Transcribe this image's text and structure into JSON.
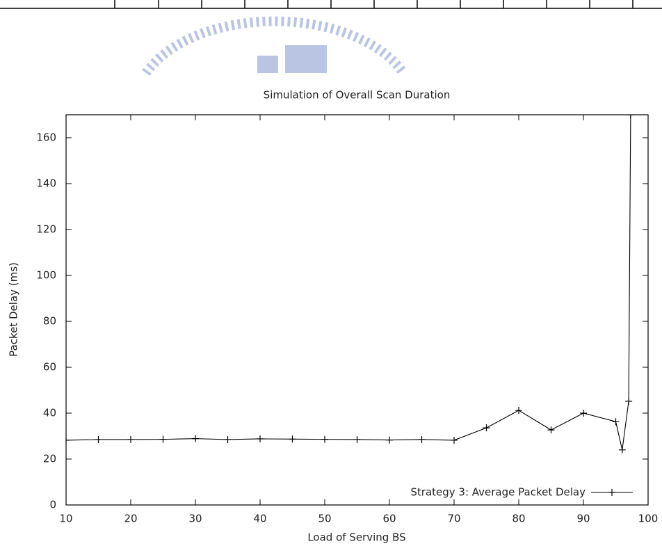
{
  "chart_data": {
    "type": "line",
    "title": "Simulation of Overall Scan Duration",
    "x_label": "Load of Serving BS",
    "y_label": "Packet Delay (ms)",
    "x": [
      10,
      15,
      20,
      25,
      30,
      35,
      40,
      45,
      50,
      55,
      60,
      65,
      70,
      75,
      80,
      85,
      90,
      95,
      96,
      97,
      97.3
    ],
    "series": [
      {
        "name": "Strategy 3: Average Packet Delay",
        "color": "#000000",
        "values": [
          28.2,
          28.5,
          28.5,
          28.6,
          28.9,
          28.5,
          28.8,
          28.7,
          28.6,
          28.5,
          28.3,
          28.5,
          28.2,
          33.6,
          41.2,
          32.7,
          40,
          36.3,
          24,
          45.2,
          170
        ]
      }
    ],
    "xlim": [
      10,
      100
    ],
    "xticks": [
      10,
      20,
      30,
      40,
      50,
      60,
      70,
      80,
      90,
      100
    ],
    "ylim": [
      0,
      170
    ],
    "yticks": [
      0,
      20,
      40,
      60,
      80,
      100,
      120,
      140,
      160
    ],
    "grid": false,
    "legend": "lower right"
  }
}
